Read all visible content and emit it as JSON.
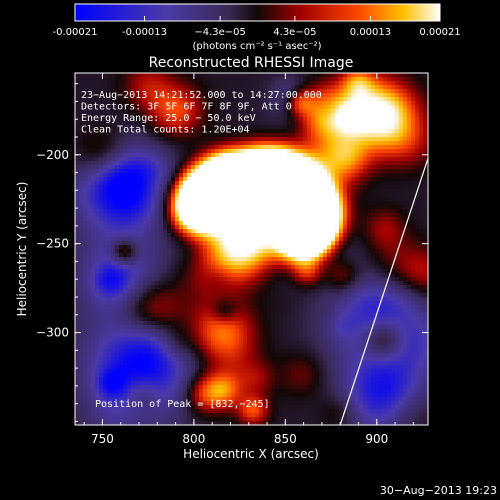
{
  "colorbar": {
    "tick_labels": [
      "-0.00021",
      "-0.00013",
      "−4.3e−05",
      "4.3e−05",
      "0.00013",
      "0.00021"
    ],
    "tick_values": [
      -0.00021,
      -0.00013,
      -4.3e-05,
      4.3e-05,
      0.00013,
      0.00021
    ],
    "range": [
      -0.00021,
      0.00021
    ],
    "unit_label": "(photons cm⁻² s⁻¹ asec⁻²)"
  },
  "chart_data": {
    "type": "heatmap",
    "title": "Reconstructed RHESSI Image",
    "xlabel": "Heliocentric X (arcsec)",
    "ylabel": "Heliocentric Y (arcsec)",
    "xlim": [
      735,
      928
    ],
    "ylim": [
      -352,
      -154
    ],
    "x_ticks": [
      750,
      800,
      850,
      900
    ],
    "x_tick_labels": [
      "750",
      "800",
      "850",
      "900"
    ],
    "y_ticks": [
      -200,
      -250,
      -300
    ],
    "y_tick_labels": [
      "−200",
      "−250",
      "−300"
    ],
    "info_lines": [
      "23−Aug−2013 14:21:52.000 to 14:27:00.000",
      "Detectors: 3F 5F 6F 7F 8F 9F, Att 0",
      "Energy Range: 25.0 − 50.0 keV",
      "Clean    Total counts: 1.20E+04"
    ],
    "peak_label": "Position of Peak = [832,−245]",
    "peak": [
      832,
      -245
    ],
    "limb_line": [
      [
        880,
        -352
      ],
      [
        928,
        -202
      ]
    ]
  },
  "footer": {
    "timestamp": "30−Aug−2013 19:23"
  }
}
